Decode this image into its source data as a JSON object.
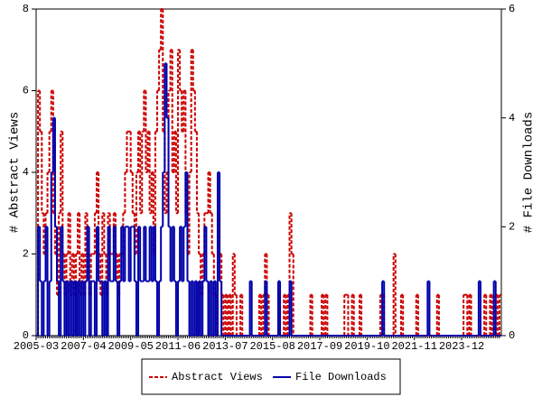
{
  "chart_data": {
    "type": "line",
    "step": true,
    "y_label": "# Abstract Views",
    "y2_label": "# File Downloads",
    "categories": [
      "2005-03",
      null,
      null,
      null,
      null,
      null,
      null,
      null,
      null,
      null,
      null,
      null,
      null,
      null,
      null,
      null,
      null,
      null,
      null,
      null,
      null,
      null,
      null,
      null,
      null,
      "2007-04",
      null,
      null,
      null,
      null,
      null,
      null,
      null,
      null,
      null,
      null,
      null,
      null,
      null,
      null,
      null,
      null,
      null,
      null,
      null,
      null,
      null,
      null,
      null,
      null,
      "2009-05",
      null,
      null,
      null,
      null,
      null,
      null,
      null,
      null,
      null,
      null,
      null,
      null,
      null,
      null,
      null,
      null,
      null,
      null,
      null,
      null,
      null,
      null,
      null,
      null,
      "2011-06",
      null,
      null,
      null,
      null,
      null,
      null,
      null,
      null,
      null,
      null,
      null,
      null,
      null,
      null,
      null,
      null,
      null,
      null,
      null,
      null,
      null,
      null,
      null,
      null,
      "2013-07",
      null,
      null,
      null,
      null,
      null,
      null,
      null,
      null,
      null,
      null,
      null,
      null,
      null,
      null,
      null,
      null,
      null,
      null,
      null,
      null,
      null,
      null,
      null,
      null,
      "2015-08",
      null,
      null,
      null,
      null,
      null,
      null,
      null,
      null,
      null,
      null,
      null,
      null,
      null,
      null,
      null,
      null,
      null,
      null,
      null,
      null,
      null,
      null,
      null,
      null,
      "2017-09",
      null,
      null,
      null,
      null,
      null,
      null,
      null,
      null,
      null,
      null,
      null,
      null,
      null,
      null,
      null,
      null,
      null,
      null,
      null,
      null,
      null,
      null,
      null,
      null,
      "2019-10",
      null,
      null,
      null,
      null,
      null,
      null,
      null,
      null,
      null,
      null,
      null,
      null,
      null,
      null,
      null,
      null,
      null,
      null,
      null,
      null,
      null,
      null,
      null,
      null,
      "2021-11",
      null,
      null,
      null,
      null,
      null,
      null,
      null,
      null,
      null,
      null,
      null,
      null,
      null,
      null,
      null,
      null,
      null,
      null,
      null,
      null,
      null,
      null,
      null,
      null,
      "2023-12",
      null,
      null,
      null,
      null,
      null,
      null,
      null,
      null,
      null,
      null,
      null,
      null,
      null,
      null,
      null,
      null,
      null,
      null,
      null,
      null
    ],
    "series": [
      {
        "name": "Abstract Views",
        "color": "#cc0000",
        "dash": true,
        "values": [
          0,
          6,
          5,
          3,
          2,
          3,
          4,
          5,
          6,
          3,
          2,
          1,
          3,
          5,
          2,
          1,
          2,
          3,
          1,
          2,
          1,
          2,
          3,
          1,
          2,
          1,
          3,
          2,
          1,
          2,
          2,
          3,
          4,
          2,
          1,
          3,
          2,
          1,
          3,
          2,
          2,
          3,
          2,
          1,
          2,
          2,
          3,
          4,
          5,
          5,
          4,
          3,
          2,
          4,
          5,
          3,
          5,
          6,
          4,
          5,
          3,
          4,
          2,
          5,
          6,
          7,
          8,
          5,
          3,
          4,
          6,
          7,
          4,
          5,
          3,
          7,
          6,
          5,
          6,
          3,
          2,
          4,
          7,
          6,
          5,
          3,
          2,
          1,
          2,
          3,
          3,
          4,
          3,
          2,
          1,
          0,
          3,
          2,
          1,
          0,
          1,
          0,
          1,
          0,
          2,
          1,
          0,
          0,
          1,
          0,
          0,
          0,
          0,
          0,
          0,
          0,
          0,
          0,
          1,
          0,
          1,
          2,
          1,
          0,
          0,
          0,
          0,
          0,
          1,
          0,
          0,
          1,
          0,
          1,
          3,
          2,
          0,
          0,
          0,
          0,
          0,
          0,
          0,
          0,
          0,
          1,
          0,
          0,
          0,
          0,
          0,
          1,
          0,
          1,
          0,
          0,
          0,
          0,
          0,
          0,
          0,
          0,
          0,
          1,
          1,
          0,
          0,
          1,
          0,
          0,
          0,
          1,
          0,
          0,
          0,
          0,
          0,
          0,
          0,
          0,
          0,
          0,
          1,
          1,
          0,
          0,
          0,
          0,
          0,
          2,
          0,
          0,
          0,
          1,
          0,
          0,
          0,
          0,
          0,
          0,
          0,
          1,
          0,
          0,
          0,
          0,
          0,
          0,
          0,
          0,
          0,
          0,
          1,
          0,
          0,
          0,
          0,
          0,
          0,
          0,
          0,
          0,
          0,
          0,
          0,
          0,
          1,
          1,
          0,
          1,
          0,
          0,
          0,
          0,
          0,
          0,
          0,
          1,
          0,
          0,
          1,
          0,
          0,
          1,
          0,
          1
        ]
      },
      {
        "name": "File Downloads",
        "color": "#0000aa",
        "axis": "y2",
        "values": [
          0,
          2,
          1,
          0,
          1,
          2,
          0,
          1,
          3,
          4,
          2,
          1,
          0,
          2,
          1,
          0,
          1,
          0,
          1,
          0,
          1,
          0,
          1,
          0,
          1,
          0,
          1,
          2,
          0,
          1,
          1,
          0,
          2,
          1,
          1,
          0,
          1,
          0,
          2,
          1,
          1,
          2,
          1,
          0,
          1,
          2,
          1,
          2,
          2,
          1,
          2,
          2,
          1,
          0,
          2,
          1,
          1,
          2,
          1,
          1,
          2,
          1,
          2,
          1,
          0,
          1,
          2,
          3,
          5,
          4,
          2,
          1,
          2,
          1,
          0,
          1,
          2,
          1,
          2,
          3,
          1,
          0,
          1,
          0,
          1,
          0,
          1,
          0,
          1,
          2,
          1,
          0,
          1,
          0,
          1,
          0,
          3,
          1,
          0,
          0,
          0,
          0,
          0,
          0,
          0,
          0,
          0,
          0,
          0,
          0,
          0,
          0,
          0,
          1,
          0,
          0,
          0,
          0,
          0,
          0,
          0,
          1,
          0,
          0,
          0,
          0,
          0,
          0,
          1,
          0,
          0,
          0,
          0,
          0,
          1,
          0,
          0,
          0,
          0,
          0,
          0,
          0,
          0,
          0,
          0,
          0,
          0,
          0,
          0,
          0,
          0,
          0,
          0,
          0,
          0,
          0,
          0,
          0,
          0,
          0,
          0,
          0,
          0,
          0,
          0,
          0,
          0,
          0,
          0,
          0,
          0,
          0,
          0,
          0,
          0,
          0,
          0,
          0,
          0,
          0,
          0,
          0,
          0,
          1,
          0,
          0,
          0,
          0,
          0,
          0,
          0,
          0,
          0,
          0,
          0,
          0,
          0,
          0,
          0,
          0,
          0,
          0,
          0,
          0,
          0,
          0,
          0,
          1,
          0,
          0,
          0,
          0,
          0,
          0,
          0,
          0,
          0,
          0,
          0,
          0,
          0,
          0,
          0,
          0,
          0,
          0,
          0,
          0,
          0,
          0,
          0,
          0,
          0,
          0,
          1,
          0,
          0,
          0,
          0,
          0,
          0,
          0,
          1,
          0,
          0,
          0
        ]
      }
    ],
    "ylim": [
      0,
      8
    ],
    "yticks": [
      0,
      2,
      4,
      6,
      8
    ],
    "y2lim": [
      0,
      6
    ],
    "y2ticks": [
      0,
      2,
      4,
      6
    ],
    "legend": "bottom"
  }
}
